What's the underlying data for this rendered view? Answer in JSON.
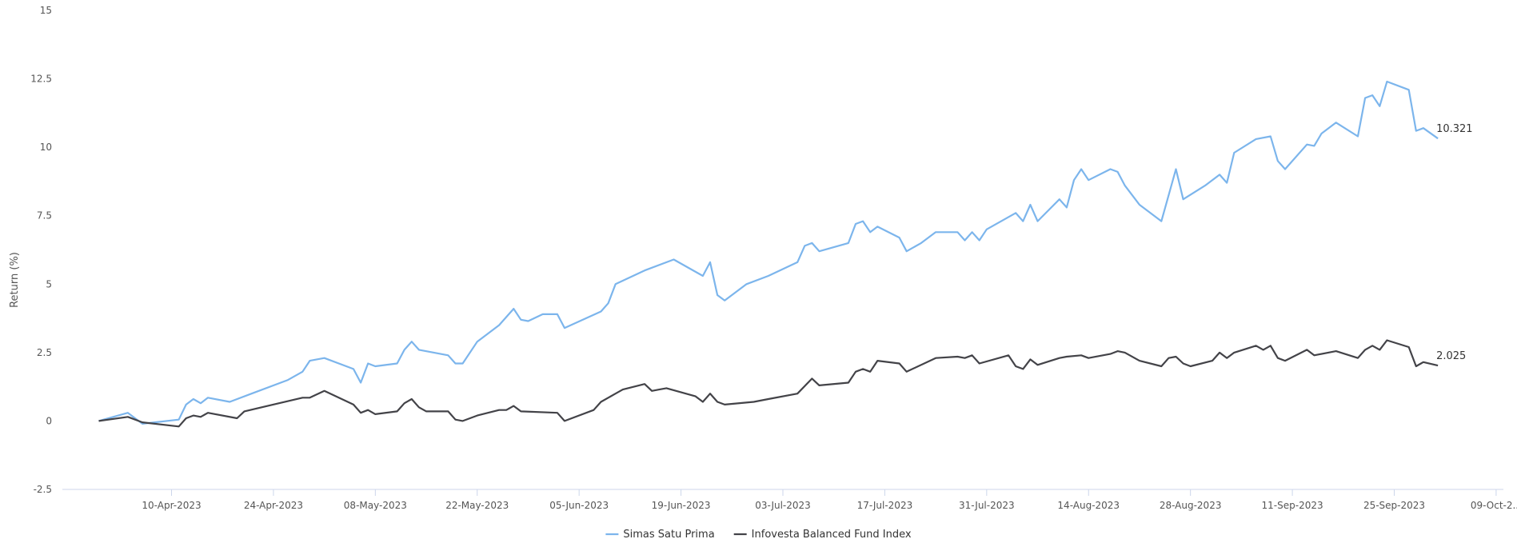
{
  "chart_data": {
    "type": "line",
    "title": "",
    "xlabel": "",
    "ylabel": "Return (%)",
    "ylim": [
      -2.5,
      15
    ],
    "yticks": [
      "-2.5",
      "0",
      "2.5",
      "5",
      "7.5",
      "10",
      "12.5",
      "15"
    ],
    "yticks_values": [
      -2.5,
      0,
      2.5,
      5,
      7.5,
      10,
      12.5,
      15
    ],
    "xlim": [
      "2023-03-26",
      "2023-10-10"
    ],
    "xticks": [
      "10-Apr-2023",
      "24-Apr-2023",
      "08-May-2023",
      "22-May-2023",
      "05-Jun-2023",
      "19-Jun-2023",
      "03-Jul-2023",
      "17-Jul-2023",
      "31-Jul-2023",
      "14-Aug-2023",
      "28-Aug-2023",
      "11-Sep-2023",
      "25-Sep-2023",
      "09-Oct-2..."
    ],
    "xticks_dates": [
      "2023-04-10",
      "2023-04-24",
      "2023-05-08",
      "2023-05-22",
      "2023-06-05",
      "2023-06-19",
      "2023-07-03",
      "2023-07-17",
      "2023-07-31",
      "2023-08-14",
      "2023-08-28",
      "2023-09-11",
      "2023-09-25",
      "2023-10-09"
    ],
    "grid": false,
    "legend_position": "bottom",
    "series": [
      {
        "name": "Simas Satu Prima",
        "color": "#7cb5ec",
        "end_label": "10.321",
        "points": [
          [
            "2023-03-31",
            0.0
          ],
          [
            "2023-04-04",
            0.3
          ],
          [
            "2023-04-06",
            -0.1
          ],
          [
            "2023-04-11",
            0.05
          ],
          [
            "2023-04-12",
            0.6
          ],
          [
            "2023-04-13",
            0.8
          ],
          [
            "2023-04-14",
            0.65
          ],
          [
            "2023-04-15",
            0.85
          ],
          [
            "2023-04-18",
            0.7
          ],
          [
            "2023-04-21",
            1.0
          ],
          [
            "2023-04-26",
            1.5
          ],
          [
            "2023-04-28",
            1.8
          ],
          [
            "2023-04-29",
            2.2
          ],
          [
            "2023-05-01",
            2.3
          ],
          [
            "2023-05-05",
            1.9
          ],
          [
            "2023-05-06",
            1.4
          ],
          [
            "2023-05-07",
            2.1
          ],
          [
            "2023-05-08",
            2.0
          ],
          [
            "2023-05-11",
            2.1
          ],
          [
            "2023-05-12",
            2.6
          ],
          [
            "2023-05-13",
            2.9
          ],
          [
            "2023-05-14",
            2.6
          ],
          [
            "2023-05-18",
            2.4
          ],
          [
            "2023-05-19",
            2.1
          ],
          [
            "2023-05-20",
            2.1
          ],
          [
            "2023-05-22",
            2.9
          ],
          [
            "2023-05-25",
            3.5
          ],
          [
            "2023-05-27",
            4.1
          ],
          [
            "2023-05-28",
            3.7
          ],
          [
            "2023-05-29",
            3.65
          ],
          [
            "2023-05-31",
            3.9
          ],
          [
            "2023-06-02",
            3.9
          ],
          [
            "2023-06-03",
            3.4
          ],
          [
            "2023-06-08",
            4.0
          ],
          [
            "2023-06-09",
            4.3
          ],
          [
            "2023-06-10",
            5.0
          ],
          [
            "2023-06-14",
            5.5
          ],
          [
            "2023-06-18",
            5.9
          ],
          [
            "2023-06-22",
            5.3
          ],
          [
            "2023-06-23",
            5.8
          ],
          [
            "2023-06-24",
            4.6
          ],
          [
            "2023-06-25",
            4.4
          ],
          [
            "2023-06-28",
            5.0
          ],
          [
            "2023-07-01",
            5.3
          ],
          [
            "2023-07-05",
            5.8
          ],
          [
            "2023-07-06",
            6.4
          ],
          [
            "2023-07-07",
            6.5
          ],
          [
            "2023-07-08",
            6.2
          ],
          [
            "2023-07-12",
            6.5
          ],
          [
            "2023-07-13",
            7.2
          ],
          [
            "2023-07-14",
            7.3
          ],
          [
            "2023-07-15",
            6.9
          ],
          [
            "2023-07-16",
            7.1
          ],
          [
            "2023-07-19",
            6.7
          ],
          [
            "2023-07-20",
            6.2
          ],
          [
            "2023-07-22",
            6.5
          ],
          [
            "2023-07-24",
            6.9
          ],
          [
            "2023-07-27",
            6.9
          ],
          [
            "2023-07-28",
            6.6
          ],
          [
            "2023-07-29",
            6.9
          ],
          [
            "2023-07-30",
            6.6
          ],
          [
            "2023-07-31",
            7.0
          ],
          [
            "2023-08-04",
            7.6
          ],
          [
            "2023-08-05",
            7.3
          ],
          [
            "2023-08-06",
            7.9
          ],
          [
            "2023-08-07",
            7.3
          ],
          [
            "2023-08-10",
            8.1
          ],
          [
            "2023-08-11",
            7.8
          ],
          [
            "2023-08-12",
            8.8
          ],
          [
            "2023-08-13",
            9.2
          ],
          [
            "2023-08-14",
            8.8
          ],
          [
            "2023-08-17",
            9.2
          ],
          [
            "2023-08-18",
            9.1
          ],
          [
            "2023-08-19",
            8.6
          ],
          [
            "2023-08-21",
            7.9
          ],
          [
            "2023-08-24",
            7.3
          ],
          [
            "2023-08-26",
            9.2
          ],
          [
            "2023-08-27",
            8.1
          ],
          [
            "2023-08-30",
            8.6
          ],
          [
            "2023-09-01",
            9.0
          ],
          [
            "2023-09-02",
            8.7
          ],
          [
            "2023-09-03",
            9.8
          ],
          [
            "2023-09-06",
            10.3
          ],
          [
            "2023-09-08",
            10.4
          ],
          [
            "2023-09-09",
            9.5
          ],
          [
            "2023-09-10",
            9.2
          ],
          [
            "2023-09-13",
            10.1
          ],
          [
            "2023-09-14",
            10.05
          ],
          [
            "2023-09-15",
            10.5
          ],
          [
            "2023-09-17",
            10.9
          ],
          [
            "2023-09-20",
            10.4
          ],
          [
            "2023-09-21",
            11.8
          ],
          [
            "2023-09-22",
            11.9
          ],
          [
            "2023-09-23",
            11.5
          ],
          [
            "2023-09-24",
            12.4
          ],
          [
            "2023-09-27",
            12.1
          ],
          [
            "2023-09-28",
            10.6
          ],
          [
            "2023-09-29",
            10.7
          ],
          [
            "2023-10-01",
            10.321
          ]
        ]
      },
      {
        "name": "Infovesta Balanced Fund Index",
        "color": "#434348",
        "end_label": "2.025",
        "points": [
          [
            "2023-03-31",
            0.0
          ],
          [
            "2023-04-04",
            0.15
          ],
          [
            "2023-04-06",
            -0.05
          ],
          [
            "2023-04-11",
            -0.2
          ],
          [
            "2023-04-12",
            0.1
          ],
          [
            "2023-04-13",
            0.2
          ],
          [
            "2023-04-14",
            0.15
          ],
          [
            "2023-04-15",
            0.3
          ],
          [
            "2023-04-19",
            0.1
          ],
          [
            "2023-04-20",
            0.35
          ],
          [
            "2023-04-28",
            0.85
          ],
          [
            "2023-04-29",
            0.85
          ],
          [
            "2023-05-01",
            1.1
          ],
          [
            "2023-05-05",
            0.6
          ],
          [
            "2023-05-06",
            0.3
          ],
          [
            "2023-05-07",
            0.4
          ],
          [
            "2023-05-08",
            0.25
          ],
          [
            "2023-05-11",
            0.35
          ],
          [
            "2023-05-12",
            0.65
          ],
          [
            "2023-05-13",
            0.8
          ],
          [
            "2023-05-14",
            0.5
          ],
          [
            "2023-05-15",
            0.35
          ],
          [
            "2023-05-18",
            0.35
          ],
          [
            "2023-05-19",
            0.05
          ],
          [
            "2023-05-20",
            0.0
          ],
          [
            "2023-05-22",
            0.2
          ],
          [
            "2023-05-25",
            0.4
          ],
          [
            "2023-05-26",
            0.4
          ],
          [
            "2023-05-27",
            0.55
          ],
          [
            "2023-05-28",
            0.35
          ],
          [
            "2023-06-02",
            0.3
          ],
          [
            "2023-06-03",
            0.0
          ],
          [
            "2023-06-07",
            0.4
          ],
          [
            "2023-06-08",
            0.7
          ],
          [
            "2023-06-10",
            1.0
          ],
          [
            "2023-06-11",
            1.15
          ],
          [
            "2023-06-14",
            1.35
          ],
          [
            "2023-06-15",
            1.1
          ],
          [
            "2023-06-16",
            1.15
          ],
          [
            "2023-06-17",
            1.2
          ],
          [
            "2023-06-21",
            0.9
          ],
          [
            "2023-06-22",
            0.7
          ],
          [
            "2023-06-23",
            1.0
          ],
          [
            "2023-06-24",
            0.7
          ],
          [
            "2023-06-25",
            0.6
          ],
          [
            "2023-06-29",
            0.7
          ],
          [
            "2023-07-01",
            0.8
          ],
          [
            "2023-07-05",
            1.0
          ],
          [
            "2023-07-07",
            1.55
          ],
          [
            "2023-07-08",
            1.3
          ],
          [
            "2023-07-12",
            1.4
          ],
          [
            "2023-07-13",
            1.8
          ],
          [
            "2023-07-14",
            1.9
          ],
          [
            "2023-07-15",
            1.8
          ],
          [
            "2023-07-16",
            2.2
          ],
          [
            "2023-07-19",
            2.1
          ],
          [
            "2023-07-20",
            1.8
          ],
          [
            "2023-07-24",
            2.3
          ],
          [
            "2023-07-27",
            2.35
          ],
          [
            "2023-07-28",
            2.3
          ],
          [
            "2023-07-29",
            2.4
          ],
          [
            "2023-07-30",
            2.1
          ],
          [
            "2023-08-03",
            2.4
          ],
          [
            "2023-08-04",
            2.0
          ],
          [
            "2023-08-05",
            1.9
          ],
          [
            "2023-08-06",
            2.25
          ],
          [
            "2023-08-07",
            2.05
          ],
          [
            "2023-08-10",
            2.3
          ],
          [
            "2023-08-11",
            2.35
          ],
          [
            "2023-08-13",
            2.4
          ],
          [
            "2023-08-14",
            2.3
          ],
          [
            "2023-08-17",
            2.45
          ],
          [
            "2023-08-18",
            2.55
          ],
          [
            "2023-08-19",
            2.5
          ],
          [
            "2023-08-21",
            2.2
          ],
          [
            "2023-08-24",
            2.0
          ],
          [
            "2023-08-25",
            2.3
          ],
          [
            "2023-08-26",
            2.35
          ],
          [
            "2023-08-27",
            2.1
          ],
          [
            "2023-08-28",
            2.0
          ],
          [
            "2023-08-31",
            2.2
          ],
          [
            "2023-09-01",
            2.5
          ],
          [
            "2023-09-02",
            2.3
          ],
          [
            "2023-09-03",
            2.5
          ],
          [
            "2023-09-06",
            2.75
          ],
          [
            "2023-09-07",
            2.6
          ],
          [
            "2023-09-08",
            2.75
          ],
          [
            "2023-09-09",
            2.3
          ],
          [
            "2023-09-10",
            2.2
          ],
          [
            "2023-09-13",
            2.6
          ],
          [
            "2023-09-14",
            2.4
          ],
          [
            "2023-09-17",
            2.55
          ],
          [
            "2023-09-20",
            2.3
          ],
          [
            "2023-09-21",
            2.6
          ],
          [
            "2023-09-22",
            2.75
          ],
          [
            "2023-09-23",
            2.6
          ],
          [
            "2023-09-24",
            2.95
          ],
          [
            "2023-09-27",
            2.7
          ],
          [
            "2023-09-28",
            2.0
          ],
          [
            "2023-09-29",
            2.15
          ],
          [
            "2023-10-01",
            2.025
          ]
        ]
      }
    ]
  }
}
